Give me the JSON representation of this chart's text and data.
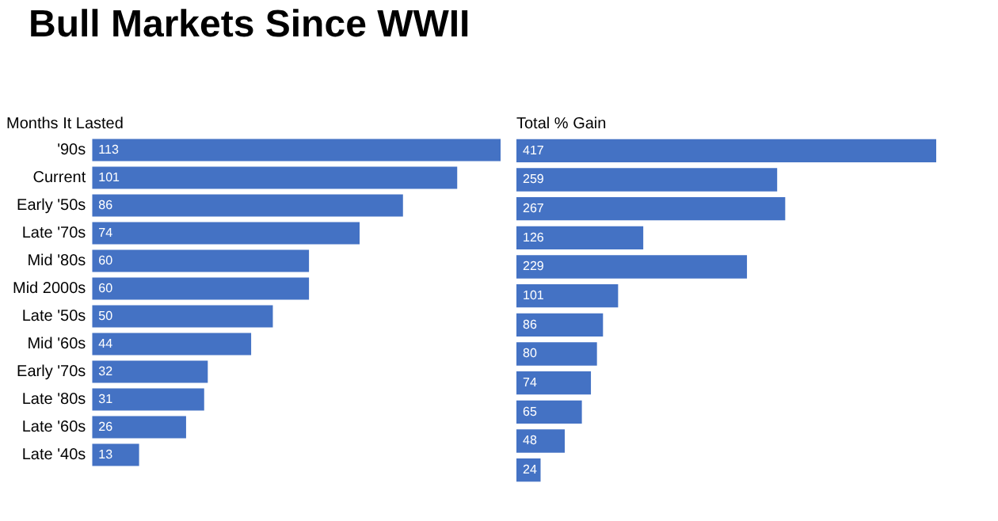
{
  "chart_data": [
    {
      "type": "bar",
      "orientation": "horizontal",
      "title": "Bull Markets Since WWII",
      "subtitle": "Months It Lasted",
      "categories": [
        "'90s",
        "Current",
        "Early '50s",
        "Late '70s",
        "Mid '80s",
        "Mid 2000s",
        "Late '50s",
        "Mid '60s",
        "Early '70s",
        "Late '80s",
        "Late '60s",
        "Late '40s"
      ],
      "values": [
        113,
        101,
        86,
        74,
        60,
        60,
        50,
        44,
        32,
        31,
        26,
        13
      ],
      "color": "#4472c4",
      "xlim": [
        0,
        113
      ],
      "data_labels": true,
      "tick_labels": "y",
      "grid": false,
      "legend": false
    },
    {
      "type": "bar",
      "orientation": "horizontal",
      "subtitle": "Total % Gain",
      "categories": [
        null,
        null,
        null,
        null,
        null,
        null,
        null,
        null,
        null,
        null,
        null,
        null
      ],
      "values": [
        417,
        259,
        267,
        126,
        229,
        101,
        86,
        80,
        74,
        65,
        48,
        24
      ],
      "color": "#4472c4",
      "xlim": [
        0,
        417
      ],
      "data_labels": true,
      "tick_labels": false,
      "grid": false,
      "legend": false
    }
  ]
}
